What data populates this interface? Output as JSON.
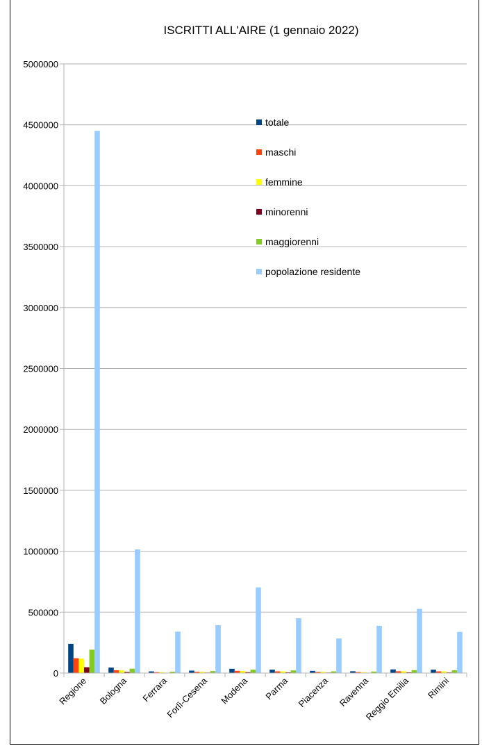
{
  "chart_data": {
    "type": "bar",
    "title": "ISCRITTI ALL'AIRE (1 gennaio 2022)",
    "xlabel": "",
    "ylabel": "",
    "ylim": [
      0,
      5000000
    ],
    "yticks": [
      "0",
      "500000",
      "1000000",
      "1500000",
      "2000000",
      "2500000",
      "3000000",
      "3500000",
      "4000000",
      "4500000",
      "5000000"
    ],
    "grid": true,
    "legend_position": "top-right",
    "categories": [
      "Regione",
      "Bologna",
      "Ferrara",
      "Forlì-Cesena",
      "Modena",
      "Parma",
      "Piacenza",
      "Ravenna",
      "Reggio Emilia",
      "Rimini"
    ],
    "series": [
      {
        "name": "totale",
        "color": "#004586",
        "values": [
          240000,
          45000,
          14000,
          20000,
          35000,
          28000,
          18000,
          15000,
          30000,
          28000
        ]
      },
      {
        "name": "maschi",
        "color": "#ff420e",
        "values": [
          122000,
          23000,
          7000,
          10000,
          18000,
          14000,
          9000,
          8000,
          15000,
          14000
        ]
      },
      {
        "name": "femmine",
        "color": "#ffff00",
        "values": [
          118000,
          22000,
          7000,
          10000,
          17000,
          14000,
          9000,
          7000,
          15000,
          14000
        ]
      },
      {
        "name": "minorenni",
        "color": "#7e0021",
        "values": [
          48000,
          9000,
          3000,
          4000,
          7000,
          6000,
          4000,
          3000,
          6000,
          5000
        ]
      },
      {
        "name": "maggiorenni",
        "color": "#83ca22",
        "values": [
          192000,
          36000,
          11000,
          16000,
          28000,
          22000,
          14000,
          12000,
          24000,
          23000
        ]
      },
      {
        "name": "popolazione residente",
        "color": "#99ccff",
        "values": [
          4450000,
          1015000,
          340000,
          393000,
          703000,
          450000,
          284000,
          388000,
          527000,
          338000
        ]
      }
    ]
  }
}
